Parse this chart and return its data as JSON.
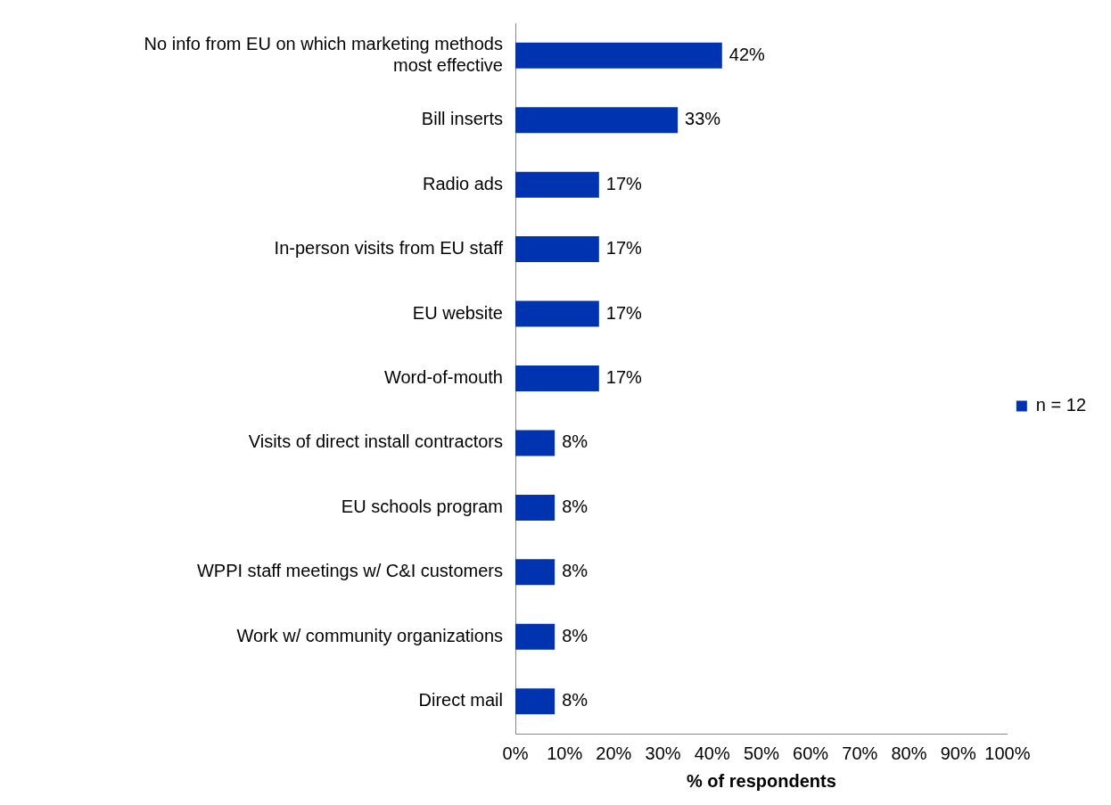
{
  "chart_data": {
    "type": "bar",
    "orientation": "horizontal",
    "xlabel": "% of respondents",
    "categories": [
      "No info from EU on which marketing methods most effective",
      "Bill inserts",
      "Radio ads",
      "In-person visits from EU staff",
      "EU website",
      "Word-of-mouth",
      "Visits of direct install contractors",
      "EU schools program",
      "WPPI staff meetings w/ C&I customers",
      "Work w/ community organizations",
      "Direct mail"
    ],
    "series": [
      {
        "name": "n = 12",
        "color": "#0033b0",
        "values": [
          42,
          33,
          17,
          17,
          17,
          17,
          8,
          8,
          8,
          8,
          8
        ],
        "value_labels": [
          "42%",
          "33%",
          "17%",
          "17%",
          "17%",
          "17%",
          "8%",
          "8%",
          "8%",
          "8%",
          "8%"
        ]
      }
    ],
    "xlim": [
      0,
      100
    ],
    "xticks": [
      {
        "value": 0,
        "label": "0%"
      },
      {
        "value": 10,
        "label": "10%"
      },
      {
        "value": 20,
        "label": "20%"
      },
      {
        "value": 30,
        "label": "30%"
      },
      {
        "value": 40,
        "label": "40%"
      },
      {
        "value": 50,
        "label": "50%"
      },
      {
        "value": 60,
        "label": "60%"
      },
      {
        "value": 70,
        "label": "70%"
      },
      {
        "value": 80,
        "label": "80%"
      },
      {
        "value": 90,
        "label": "90%"
      },
      {
        "value": 100,
        "label": "100%"
      }
    ],
    "legend": "right",
    "grid": false
  }
}
